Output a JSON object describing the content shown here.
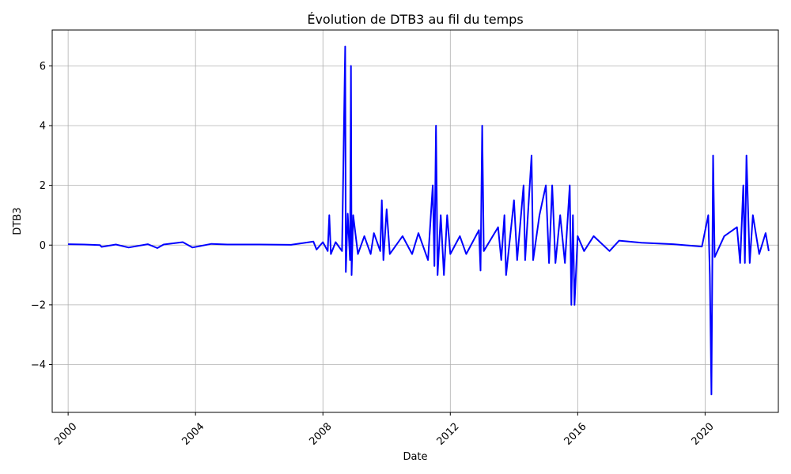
{
  "chart_data": {
    "type": "line",
    "title": "Évolution de DTB3 au fil du temps",
    "xlabel": "Date",
    "ylabel": "DTB3",
    "xlim": [
      1999.5,
      2022.3
    ],
    "ylim": [
      -5.6,
      7.2
    ],
    "grid": true,
    "line_color": "#0000ff",
    "x_ticks": [
      {
        "value": 2000,
        "label": "2000"
      },
      {
        "value": 2004,
        "label": "2004"
      },
      {
        "value": 2008,
        "label": "2008"
      },
      {
        "value": 2012,
        "label": "2012"
      },
      {
        "value": 2016,
        "label": "2016"
      },
      {
        "value": 2020,
        "label": "2020"
      }
    ],
    "y_ticks": [
      {
        "value": -4,
        "label": "−4"
      },
      {
        "value": -2,
        "label": "−2"
      },
      {
        "value": 0,
        "label": "0"
      },
      {
        "value": 2,
        "label": "2"
      },
      {
        "value": 4,
        "label": "4"
      },
      {
        "value": 6,
        "label": "6"
      }
    ],
    "series": [
      {
        "name": "DTB3",
        "points": [
          [
            2000.0,
            0.03
          ],
          [
            2000.5,
            0.02
          ],
          [
            2001.0,
            0.0
          ],
          [
            2001.05,
            -0.06
          ],
          [
            2001.5,
            0.02
          ],
          [
            2001.9,
            -0.08
          ],
          [
            2002.5,
            0.03
          ],
          [
            2002.8,
            -0.1
          ],
          [
            2003.0,
            0.02
          ],
          [
            2003.6,
            0.1
          ],
          [
            2003.9,
            -0.08
          ],
          [
            2004.5,
            0.04
          ],
          [
            2005.0,
            0.02
          ],
          [
            2006.0,
            0.02
          ],
          [
            2007.0,
            0.01
          ],
          [
            2007.7,
            0.12
          ],
          [
            2007.8,
            -0.15
          ],
          [
            2008.0,
            0.1
          ],
          [
            2008.15,
            -0.2
          ],
          [
            2008.2,
            1.0
          ],
          [
            2008.25,
            -0.3
          ],
          [
            2008.4,
            0.1
          ],
          [
            2008.6,
            -0.2
          ],
          [
            2008.7,
            6.65
          ],
          [
            2008.72,
            -0.9
          ],
          [
            2008.78,
            1.05
          ],
          [
            2008.85,
            -0.5
          ],
          [
            2008.88,
            6.0
          ],
          [
            2008.9,
            -1.0
          ],
          [
            2008.95,
            1.0
          ],
          [
            2009.1,
            -0.3
          ],
          [
            2009.3,
            0.3
          ],
          [
            2009.5,
            -0.3
          ],
          [
            2009.6,
            0.4
          ],
          [
            2009.8,
            -0.2
          ],
          [
            2009.85,
            1.5
          ],
          [
            2009.9,
            -0.5
          ],
          [
            2010.0,
            1.2
          ],
          [
            2010.1,
            -0.3
          ],
          [
            2010.5,
            0.3
          ],
          [
            2010.8,
            -0.3
          ],
          [
            2011.0,
            0.4
          ],
          [
            2011.3,
            -0.5
          ],
          [
            2011.45,
            2.0
          ],
          [
            2011.5,
            -0.7
          ],
          [
            2011.55,
            4.0
          ],
          [
            2011.6,
            -1.0
          ],
          [
            2011.7,
            1.0
          ],
          [
            2011.8,
            -1.0
          ],
          [
            2011.9,
            1.0
          ],
          [
            2012.0,
            -0.3
          ],
          [
            2012.3,
            0.3
          ],
          [
            2012.5,
            -0.3
          ],
          [
            2012.9,
            0.5
          ],
          [
            2012.95,
            -0.85
          ],
          [
            2013.0,
            4.0
          ],
          [
            2013.05,
            -0.2
          ],
          [
            2013.5,
            0.6
          ],
          [
            2013.6,
            -0.5
          ],
          [
            2013.7,
            1.0
          ],
          [
            2013.75,
            -1.0
          ],
          [
            2014.0,
            1.5
          ],
          [
            2014.1,
            -0.5
          ],
          [
            2014.3,
            2.0
          ],
          [
            2014.35,
            -0.5
          ],
          [
            2014.55,
            3.0
          ],
          [
            2014.6,
            -0.5
          ],
          [
            2014.8,
            1.0
          ],
          [
            2015.0,
            2.0
          ],
          [
            2015.1,
            -0.6
          ],
          [
            2015.2,
            2.0
          ],
          [
            2015.3,
            -0.6
          ],
          [
            2015.45,
            1.0
          ],
          [
            2015.6,
            -0.6
          ],
          [
            2015.75,
            2.0
          ],
          [
            2015.8,
            -2.0
          ],
          [
            2015.85,
            1.0
          ],
          [
            2015.9,
            -2.0
          ],
          [
            2016.0,
            0.3
          ],
          [
            2016.2,
            -0.2
          ],
          [
            2016.5,
            0.3
          ],
          [
            2017.0,
            -0.2
          ],
          [
            2017.3,
            0.15
          ],
          [
            2018.0,
            0.08
          ],
          [
            2019.0,
            0.03
          ],
          [
            2019.9,
            -0.05
          ],
          [
            2020.1,
            1.0
          ],
          [
            2020.15,
            -1.0
          ],
          [
            2020.2,
            -5.0
          ],
          [
            2020.25,
            3.0
          ],
          [
            2020.3,
            -0.4
          ],
          [
            2020.6,
            0.3
          ],
          [
            2021.0,
            0.6
          ],
          [
            2021.1,
            -0.6
          ],
          [
            2021.2,
            2.0
          ],
          [
            2021.25,
            -0.6
          ],
          [
            2021.3,
            3.0
          ],
          [
            2021.4,
            -0.6
          ],
          [
            2021.5,
            1.0
          ],
          [
            2021.7,
            -0.3
          ],
          [
            2021.9,
            0.4
          ],
          [
            2022.0,
            -0.2
          ]
        ]
      }
    ]
  }
}
